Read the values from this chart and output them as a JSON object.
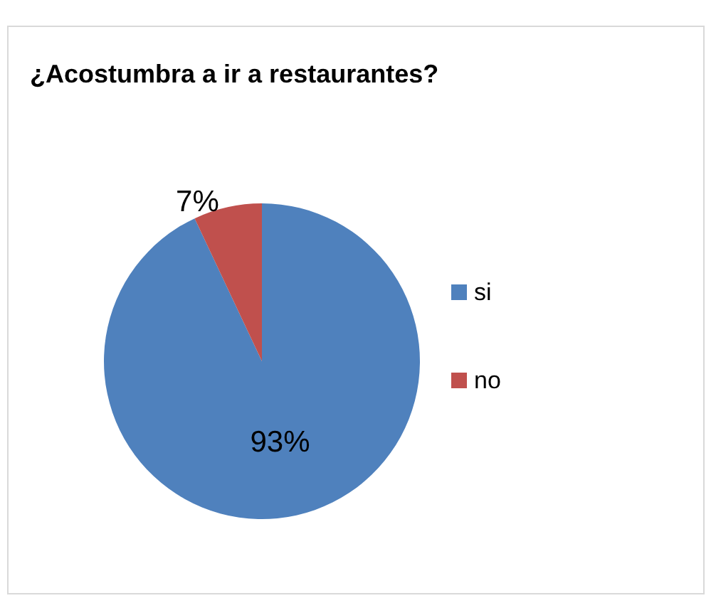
{
  "chart_data": {
    "type": "pie",
    "title": "¿Acostumbra a ir a restaurantes?",
    "categories": [
      "si",
      "no"
    ],
    "values": [
      93,
      7
    ],
    "colors": [
      "#4f81bd",
      "#c0504d"
    ],
    "value_labels": [
      "93%",
      "7%"
    ],
    "legend": "right"
  }
}
